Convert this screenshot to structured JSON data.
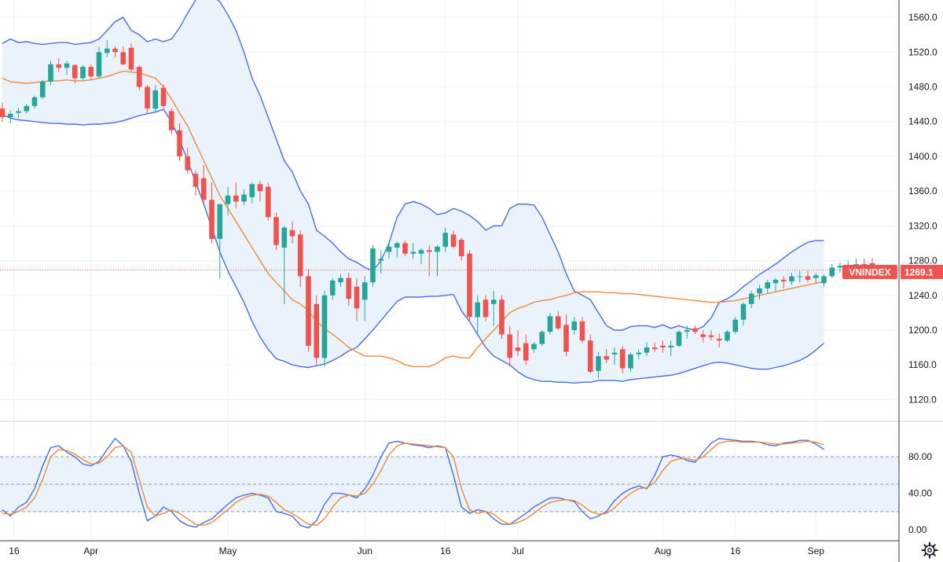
{
  "chart_data": {
    "type": "candlestick",
    "symbol": "VNINDEX",
    "last_price": 1269.1,
    "last_price_label": "1269.1",
    "colors": {
      "up": "#26a69a",
      "down": "#ef5350",
      "bb_band": "#4a6ee0",
      "bb_basis": "#f08a3a",
      "stoch_k": "#4a6ee0",
      "stoch_d": "#f08a3a"
    },
    "price_axis": {
      "min": 1095,
      "max": 1580,
      "ticks": [
        1560,
        1520,
        1480,
        1440,
        1400,
        1360,
        1320,
        1280,
        1240,
        1200,
        1160,
        1120
      ],
      "labels": [
        "1560.0",
        "1520.0",
        "1480.0",
        "1440.0",
        "1400.0",
        "1360.0",
        "1320.0",
        "1280.0",
        "1240.0",
        "1200.0",
        "1160.0",
        "1120.0"
      ]
    },
    "stoch_axis": {
      "min": -12,
      "max": 118,
      "ticks": [
        80,
        40,
        0
      ],
      "labels": [
        "80.00",
        "40.00",
        "0.00"
      ],
      "upper_band": 80,
      "middle": 50,
      "lower_band": 20
    },
    "x_labels": [
      {
        "label": "16",
        "index": 0
      },
      {
        "label": "Apr",
        "index": 11
      },
      {
        "label": "May",
        "index": 28
      },
      {
        "label": "Jun",
        "index": 45
      },
      {
        "label": "16",
        "index": 55
      },
      {
        "label": "Jul",
        "index": 64
      },
      {
        "label": "Aug",
        "index": 82
      },
      {
        "label": "16",
        "index": 91
      },
      {
        "label": "Sep",
        "index": 101
      }
    ],
    "candles": [
      [
        1455,
        1462,
        1440,
        1445
      ],
      [
        1445,
        1453,
        1438,
        1449
      ],
      [
        1450,
        1456,
        1444,
        1452
      ],
      [
        1452,
        1460,
        1449,
        1458
      ],
      [
        1458,
        1470,
        1455,
        1468
      ],
      [
        1468,
        1488,
        1466,
        1486
      ],
      [
        1486,
        1510,
        1482,
        1506
      ],
      [
        1506,
        1513,
        1497,
        1502
      ],
      [
        1502,
        1510,
        1494,
        1507
      ],
      [
        1505,
        1506,
        1484,
        1490
      ],
      [
        1490,
        1505,
        1488,
        1503
      ],
      [
        1503,
        1506,
        1488,
        1492
      ],
      [
        1492,
        1526,
        1490,
        1520
      ],
      [
        1519,
        1534,
        1514,
        1524
      ],
      [
        1524,
        1527,
        1514,
        1520
      ],
      [
        1520,
        1527,
        1505,
        1506
      ],
      [
        1525,
        1530,
        1498,
        1500
      ],
      [
        1503,
        1505,
        1476,
        1480
      ],
      [
        1480,
        1482,
        1449,
        1455
      ],
      [
        1455,
        1482,
        1450,
        1476
      ],
      [
        1479,
        1483,
        1455,
        1458
      ],
      [
        1452,
        1455,
        1425,
        1430
      ],
      [
        1430,
        1438,
        1395,
        1400
      ],
      [
        1400,
        1410,
        1380,
        1384
      ],
      [
        1380,
        1384,
        1355,
        1365
      ],
      [
        1375,
        1390,
        1344,
        1350
      ],
      [
        1350,
        1370,
        1300,
        1305
      ],
      [
        1305,
        1345,
        1260,
        1345
      ],
      [
        1345,
        1365,
        1332,
        1355
      ],
      [
        1355,
        1370,
        1340,
        1348
      ],
      [
        1348,
        1362,
        1344,
        1356
      ],
      [
        1353,
        1370,
        1346,
        1368
      ],
      [
        1368,
        1372,
        1348,
        1360
      ],
      [
        1365,
        1370,
        1326,
        1330
      ],
      [
        1330,
        1335,
        1292,
        1298
      ],
      [
        1295,
        1320,
        1230,
        1318
      ],
      [
        1315,
        1325,
        1300,
        1308
      ],
      [
        1310,
        1315,
        1250,
        1262
      ],
      [
        1262,
        1270,
        1175,
        1182
      ],
      [
        1230,
        1240,
        1160,
        1168
      ],
      [
        1168,
        1245,
        1158,
        1240
      ],
      [
        1240,
        1260,
        1235,
        1257
      ],
      [
        1255,
        1264,
        1250,
        1260
      ],
      [
        1260,
        1266,
        1228,
        1236
      ],
      [
        1250,
        1260,
        1210,
        1225
      ],
      [
        1235,
        1262,
        1210,
        1255
      ],
      [
        1255,
        1298,
        1250,
        1294
      ],
      [
        1280,
        1292,
        1265,
        1282
      ],
      [
        1290,
        1300,
        1282,
        1296
      ],
      [
        1295,
        1302,
        1283,
        1300
      ],
      [
        1300,
        1303,
        1285,
        1288
      ],
      [
        1288,
        1300,
        1282,
        1290
      ],
      [
        1288,
        1294,
        1276,
        1292
      ],
      [
        1292,
        1298,
        1262,
        1290
      ],
      [
        1290,
        1298,
        1262,
        1296
      ],
      [
        1296,
        1318,
        1290,
        1312
      ],
      [
        1310,
        1315,
        1294,
        1296
      ],
      [
        1304,
        1306,
        1280,
        1285
      ],
      [
        1288,
        1292,
        1210,
        1215
      ],
      [
        1215,
        1240,
        1195,
        1232
      ],
      [
        1235,
        1240,
        1210,
        1215
      ],
      [
        1230,
        1245,
        1205,
        1235
      ],
      [
        1235,
        1240,
        1190,
        1195
      ],
      [
        1195,
        1205,
        1158,
        1168
      ],
      [
        1180,
        1200,
        1170,
        1176
      ],
      [
        1185,
        1195,
        1160,
        1165
      ],
      [
        1178,
        1186,
        1174,
        1184
      ],
      [
        1184,
        1200,
        1182,
        1198
      ],
      [
        1198,
        1220,
        1195,
        1216
      ],
      [
        1216,
        1222,
        1200,
        1202
      ],
      [
        1206,
        1218,
        1170,
        1175
      ],
      [
        1200,
        1215,
        1195,
        1210
      ],
      [
        1210,
        1215,
        1185,
        1188
      ],
      [
        1188,
        1195,
        1150,
        1152
      ],
      [
        1153,
        1175,
        1145,
        1170
      ],
      [
        1170,
        1178,
        1162,
        1166
      ],
      [
        1172,
        1180,
        1160,
        1174
      ],
      [
        1178,
        1182,
        1150,
        1156
      ],
      [
        1156,
        1174,
        1152,
        1172
      ],
      [
        1172,
        1178,
        1166,
        1174
      ],
      [
        1174,
        1186,
        1170,
        1180
      ],
      [
        1180,
        1186,
        1175,
        1178
      ],
      [
        1182,
        1188,
        1174,
        1180
      ],
      [
        1180,
        1188,
        1170,
        1182
      ],
      [
        1182,
        1200,
        1180,
        1198
      ],
      [
        1198,
        1205,
        1190,
        1200
      ],
      [
        1202,
        1205,
        1195,
        1198
      ],
      [
        1195,
        1200,
        1186,
        1192
      ],
      [
        1194,
        1200,
        1188,
        1192
      ],
      [
        1190,
        1196,
        1180,
        1188
      ],
      [
        1188,
        1200,
        1186,
        1198
      ],
      [
        1198,
        1215,
        1195,
        1212
      ],
      [
        1212,
        1232,
        1205,
        1230
      ],
      [
        1230,
        1245,
        1225,
        1242
      ],
      [
        1242,
        1252,
        1235,
        1248
      ],
      [
        1248,
        1258,
        1242,
        1255
      ],
      [
        1254,
        1260,
        1245,
        1258
      ],
      [
        1258,
        1262,
        1248,
        1256
      ],
      [
        1256,
        1266,
        1252,
        1262
      ],
      [
        1262,
        1268,
        1255,
        1262
      ],
      [
        1262,
        1268,
        1255,
        1258
      ],
      [
        1260,
        1266,
        1254,
        1263
      ],
      [
        1254,
        1264,
        1250,
        1262
      ],
      [
        1262,
        1276,
        1260,
        1272
      ],
      [
        1272,
        1278,
        1266,
        1274
      ],
      [
        1274,
        1280,
        1268,
        1274
      ],
      [
        1276,
        1282,
        1270,
        1276
      ],
      [
        1276,
        1282,
        1265,
        1270
      ],
      [
        1277,
        1283,
        1263,
        1269
      ]
    ],
    "bollinger": {
      "upper": [
        1530,
        1535,
        1531,
        1532,
        1530,
        1529,
        1530,
        1531,
        1531,
        1529,
        1530,
        1531,
        1535,
        1545,
        1555,
        1560,
        1545,
        1540,
        1532,
        1535,
        1532,
        1535,
        1548,
        1565,
        1580,
        1585,
        1585,
        1578,
        1563,
        1545,
        1520,
        1490,
        1470,
        1445,
        1420,
        1395,
        1382,
        1360,
        1345,
        1315,
        1308,
        1300,
        1290,
        1282,
        1278,
        1272,
        1268,
        1280,
        1300,
        1330,
        1345,
        1348,
        1345,
        1340,
        1333,
        1335,
        1340,
        1337,
        1332,
        1325,
        1315,
        1320,
        1320,
        1340,
        1345,
        1345,
        1344,
        1330,
        1310,
        1290,
        1265,
        1245,
        1240,
        1235,
        1220,
        1205,
        1200,
        1200,
        1204,
        1205,
        1205,
        1203,
        1206,
        1202,
        1205,
        1202,
        1200,
        1204,
        1214,
        1232,
        1236,
        1242,
        1250,
        1257,
        1264,
        1270,
        1276,
        1283,
        1290,
        1296,
        1301,
        1303,
        1303
      ],
      "basis": [
        1490,
        1486,
        1485,
        1484,
        1485,
        1486,
        1487,
        1487,
        1488,
        1487,
        1487,
        1488,
        1490,
        1492,
        1495,
        1498,
        1497,
        1496,
        1493,
        1490,
        1480,
        1466,
        1450,
        1435,
        1415,
        1395,
        1375,
        1355,
        1340,
        1325,
        1310,
        1295,
        1280,
        1265,
        1255,
        1245,
        1235,
        1230,
        1222,
        1210,
        1202,
        1195,
        1188,
        1180,
        1175,
        1170,
        1170,
        1170,
        1168,
        1165,
        1160,
        1158,
        1158,
        1158,
        1162,
        1168,
        1170,
        1168,
        1168,
        1180,
        1190,
        1200,
        1210,
        1220,
        1225,
        1228,
        1232,
        1234,
        1235,
        1238,
        1240,
        1243,
        1244,
        1244,
        1244,
        1243,
        1243,
        1242,
        1242,
        1241,
        1240,
        1239,
        1238,
        1237,
        1236,
        1235,
        1234,
        1233,
        1232,
        1232,
        1233,
        1234,
        1236,
        1238,
        1240,
        1242,
        1244,
        1246,
        1248,
        1250,
        1252,
        1254,
        1256
      ],
      "lower": [
        1448,
        1444,
        1442,
        1441,
        1440,
        1439,
        1438,
        1438,
        1437,
        1437,
        1436,
        1437,
        1437,
        1438,
        1439,
        1441,
        1444,
        1447,
        1449,
        1451,
        1454,
        1440,
        1419,
        1395,
        1370,
        1345,
        1318,
        1290,
        1268,
        1250,
        1232,
        1210,
        1192,
        1178,
        1167,
        1164,
        1160,
        1158,
        1157,
        1159,
        1161,
        1165,
        1170,
        1176,
        1180,
        1190,
        1200,
        1211,
        1222,
        1233,
        1238,
        1238,
        1238,
        1239,
        1239,
        1240,
        1241,
        1222,
        1210,
        1195,
        1180,
        1170,
        1165,
        1160,
        1152,
        1146,
        1143,
        1141,
        1141,
        1140,
        1140,
        1139,
        1140,
        1140,
        1142,
        1142,
        1142,
        1141,
        1143,
        1144,
        1145,
        1146,
        1147,
        1148,
        1150,
        1153,
        1156,
        1159,
        1162,
        1163,
        1162,
        1160,
        1158,
        1156,
        1155,
        1155,
        1157,
        1159,
        1162,
        1165,
        1170,
        1177,
        1185
      ]
    },
    "stochastic": {
      "k": [
        22,
        15,
        25,
        30,
        45,
        70,
        90,
        92,
        85,
        80,
        72,
        70,
        75,
        88,
        100,
        92,
        75,
        40,
        10,
        15,
        25,
        20,
        10,
        5,
        3,
        8,
        12,
        20,
        28,
        35,
        38,
        40,
        38,
        35,
        20,
        18,
        15,
        5,
        2,
        10,
        28,
        40,
        40,
        38,
        35,
        45,
        60,
        80,
        95,
        97,
        95,
        93,
        92,
        90,
        92,
        90,
        60,
        25,
        18,
        22,
        20,
        12,
        6,
        6,
        12,
        18,
        25,
        30,
        35,
        35,
        33,
        31,
        20,
        12,
        15,
        20,
        32,
        40,
        45,
        48,
        45,
        60,
        80,
        82,
        80,
        76,
        74,
        85,
        95,
        100,
        99,
        98,
        97,
        97,
        96,
        93,
        92,
        95,
        96,
        98,
        98,
        94,
        88
      ],
      "d": [
        18,
        17,
        20,
        25,
        35,
        55,
        80,
        88,
        87,
        83,
        77,
        72,
        73,
        80,
        90,
        92,
        85,
        55,
        25,
        15,
        18,
        22,
        18,
        12,
        6,
        5,
        8,
        15,
        22,
        30,
        35,
        38,
        39,
        37,
        30,
        22,
        18,
        12,
        6,
        5,
        12,
        25,
        35,
        38,
        37,
        40,
        50,
        65,
        82,
        92,
        95,
        94,
        93,
        92,
        91,
        90,
        80,
        45,
        22,
        18,
        20,
        17,
        10,
        6,
        8,
        12,
        18,
        25,
        30,
        32,
        33,
        32,
        27,
        20,
        17,
        18,
        24,
        33,
        40,
        45,
        46,
        52,
        65,
        75,
        78,
        78,
        76,
        80,
        88,
        95,
        97,
        97,
        96,
        96,
        96,
        95,
        94,
        94,
        95,
        96,
        97,
        96,
        93
      ]
    }
  }
}
